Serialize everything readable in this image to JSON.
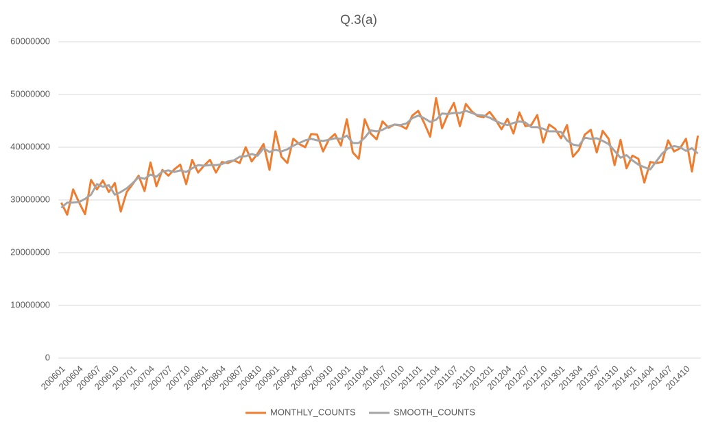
{
  "chart_data": {
    "type": "line",
    "title": "Q.3(a)",
    "categories": [
      "200601",
      null,
      null,
      "200604",
      null,
      null,
      "200607",
      null,
      null,
      "200610",
      null,
      null,
      "200701",
      null,
      null,
      "200704",
      null,
      null,
      "200707",
      null,
      null,
      "200710",
      null,
      null,
      "200801",
      null,
      null,
      "200804",
      null,
      null,
      "200807",
      null,
      null,
      "200810",
      null,
      null,
      "200901",
      null,
      null,
      "200904",
      null,
      null,
      "200907",
      null,
      null,
      "200910",
      null,
      null,
      "201001",
      null,
      null,
      "201004",
      null,
      null,
      "201007",
      null,
      null,
      "201010",
      null,
      null,
      "201101",
      null,
      null,
      "201104",
      null,
      null,
      "201107",
      null,
      null,
      "201110",
      null,
      null,
      "201201",
      null,
      null,
      "201204",
      null,
      null,
      "201207",
      null,
      null,
      "201210",
      null,
      null,
      "201301",
      null,
      null,
      "201304",
      null,
      null,
      "201307",
      null,
      null,
      "201310",
      null,
      null,
      "201401",
      null,
      null,
      "201404",
      null,
      null,
      "201407",
      null,
      null,
      "201410",
      null,
      null
    ],
    "series": [
      {
        "name": "MONTHLY_COUNTS",
        "color": "#ED7D31",
        "values": [
          29500000,
          27200000,
          32000000,
          29500000,
          27300000,
          33800000,
          32000000,
          33700000,
          31500000,
          33200000,
          27800000,
          31500000,
          33000000,
          34600000,
          31700000,
          37100000,
          32600000,
          35700000,
          34600000,
          35800000,
          36700000,
          33000000,
          37600000,
          35200000,
          36500000,
          37600000,
          35200000,
          37200000,
          37000000,
          37500000,
          37000000,
          40000000,
          37300000,
          38800000,
          40600000,
          35700000,
          43000000,
          38200000,
          37000000,
          41600000,
          40600000,
          40000000,
          42500000,
          42400000,
          39200000,
          41500000,
          42500000,
          40300000,
          45300000,
          39000000,
          37800000,
          45300000,
          42600000,
          41500000,
          44900000,
          43700000,
          44300000,
          44100000,
          43500000,
          46000000,
          46900000,
          44600000,
          42000000,
          49300000,
          43600000,
          46300000,
          48400000,
          44000000,
          48200000,
          46800000,
          45900000,
          45700000,
          46700000,
          45200000,
          43400000,
          45400000,
          42600000,
          46600000,
          44000000,
          44200000,
          46100000,
          40900000,
          44300000,
          43500000,
          41700000,
          44200000,
          38200000,
          39500000,
          42400000,
          43300000,
          39000000,
          43100000,
          41600000,
          36600000,
          41400000,
          36000000,
          38400000,
          37800000,
          33300000,
          37200000,
          37000000,
          37200000,
          41300000,
          39200000,
          39800000,
          41600000,
          35400000,
          42200000
        ]
      },
      {
        "name": "SMOOTH_COUNTS",
        "color": "#A5A5A5",
        "values": [
          28500000,
          29500000,
          29500000,
          29600000,
          30200000,
          31000000,
          33000000,
          32500000,
          32800000,
          31000000,
          31500000,
          32200000,
          33200000,
          34300000,
          34000000,
          34800000,
          34400000,
          35400000,
          35600000,
          35300000,
          35600000,
          35300000,
          36000000,
          36600000,
          36500000,
          36600000,
          36600000,
          36800000,
          37300000,
          37500000,
          38200000,
          38300000,
          38700000,
          38400000,
          39800000,
          39100000,
          39500000,
          39200000,
          39600000,
          40300000,
          40800000,
          41300000,
          41600000,
          41300000,
          41200000,
          41400000,
          41700000,
          41600000,
          42200000,
          40800000,
          40800000,
          41800000,
          43200000,
          43000000,
          43300000,
          43900000,
          44300000,
          44200000,
          44500000,
          45500000,
          46000000,
          45500000,
          44800000,
          45200000,
          46400000,
          46300000,
          46500000,
          46500000,
          46900000,
          46500000,
          46100000,
          46000000,
          45600000,
          45000000,
          44500000,
          44200000,
          44600000,
          44900000,
          44700000,
          43800000,
          43800000,
          43500000,
          43000000,
          43000000,
          42900000,
          41300000,
          40500000,
          40300000,
          41800000,
          41600000,
          41700000,
          41200000,
          40600000,
          39300000,
          38000000,
          38500000,
          37500000,
          36700000,
          36200000,
          35800000,
          37300000,
          38800000,
          39800000,
          40200000,
          40000000,
          39300000,
          39800000,
          38800000
        ]
      }
    ],
    "ylim": [
      0,
      60000000
    ],
    "yticks": [
      0,
      10000000,
      20000000,
      30000000,
      40000000,
      50000000,
      60000000
    ],
    "grid": true,
    "legend": "bottom"
  }
}
